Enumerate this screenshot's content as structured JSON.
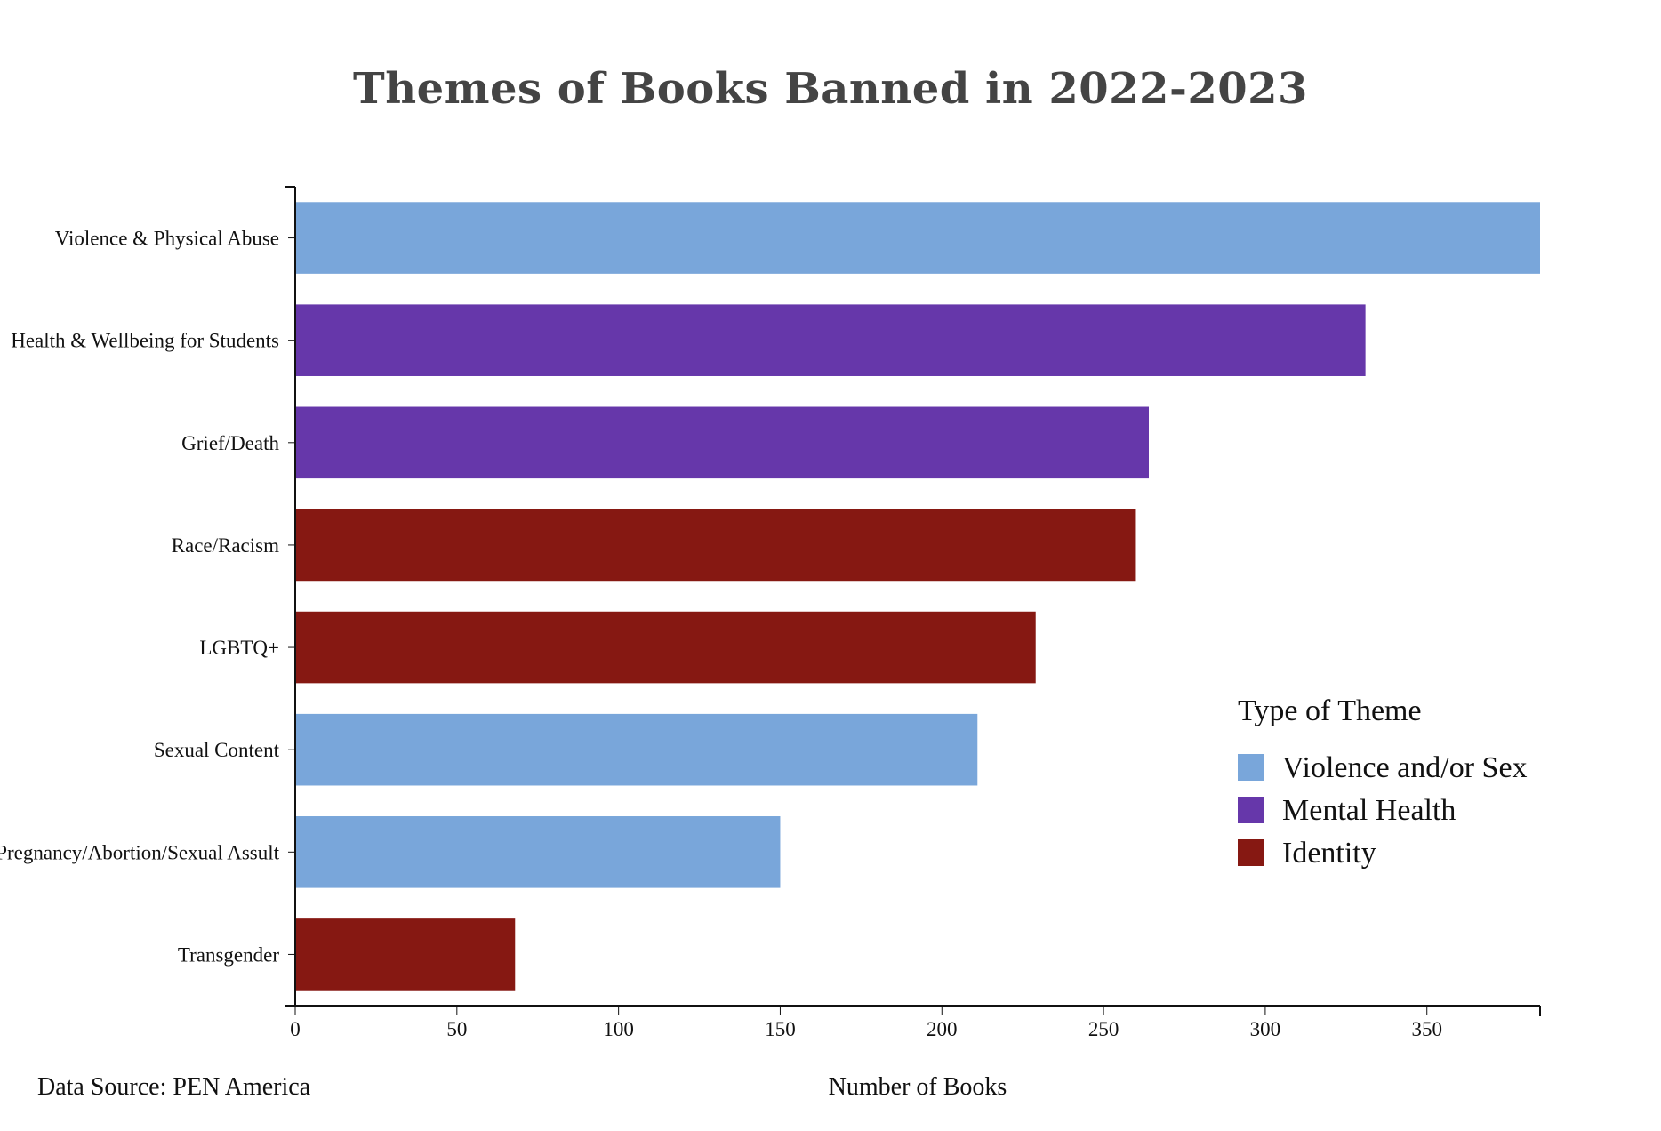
{
  "chart_data": {
    "type": "bar",
    "orientation": "horizontal",
    "title": "Themes of Books Banned in 2022-2023",
    "xlabel": "Number of Books",
    "ylabel": "",
    "source": "Data Source: PEN America",
    "xlim": [
      0,
      385
    ],
    "x_ticks": [
      0,
      50,
      100,
      150,
      200,
      250,
      300,
      350
    ],
    "grid": false,
    "legend_title": "Type of Theme",
    "legend_position": "right",
    "legend": [
      {
        "name": "Violence and/or Sex",
        "color": "#79a6da"
      },
      {
        "name": "Mental Health",
        "color": "#6637aa"
      },
      {
        "name": "Identity",
        "color": "#861812"
      }
    ],
    "bars": [
      {
        "label": "Violence & Physical Abuse",
        "value": 385,
        "group": "Violence and/or Sex",
        "color": "#79a6da"
      },
      {
        "label": "Health & Wellbeing for Students",
        "value": 331,
        "group": "Mental Health",
        "color": "#6637aa"
      },
      {
        "label": "Grief/Death",
        "value": 264,
        "group": "Mental Health",
        "color": "#6637aa"
      },
      {
        "label": "Race/Racism",
        "value": 260,
        "group": "Identity",
        "color": "#861812"
      },
      {
        "label": "LGBTQ+",
        "value": 229,
        "group": "Identity",
        "color": "#861812"
      },
      {
        "label": "Sexual Content",
        "value": 211,
        "group": "Violence and/or Sex",
        "color": "#79a6da"
      },
      {
        "label": "Pregnancy/Abortion/Sexual Assult",
        "value": 150,
        "group": "Violence and/or Sex",
        "color": "#79a6da"
      },
      {
        "label": "Transgender",
        "value": 68,
        "group": "Identity",
        "color": "#861812"
      }
    ]
  }
}
